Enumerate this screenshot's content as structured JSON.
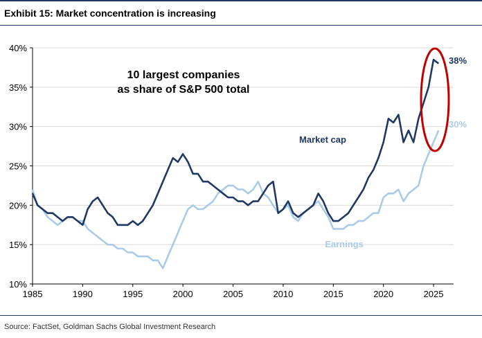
{
  "title": "Exhibit 15: Market concentration is increasing",
  "source": "Source: FactSet, Goldman Sachs Global Investment Research",
  "chart_data": {
    "type": "line",
    "subtitle_lines": [
      "10 largest companies",
      "as share of S&P 500 total"
    ],
    "xlim": [
      1985,
      2027
    ],
    "ylim": [
      10,
      40
    ],
    "x_ticks": [
      1985,
      1990,
      1995,
      2000,
      2005,
      2010,
      2015,
      2020,
      2025
    ],
    "y_ticks": [
      10,
      15,
      20,
      25,
      30,
      35,
      40
    ],
    "y_tick_labels": [
      "10%",
      "15%",
      "20%",
      "25%",
      "30%",
      "35%",
      "40%"
    ],
    "annotations": [
      {
        "text": "38%",
        "color": "#1f3864"
      },
      {
        "text": "30%",
        "color": "#a9cbe8"
      }
    ],
    "highlight": {
      "shape": "ellipse",
      "color": "#c00000",
      "around": "2024-2025 peak"
    },
    "series": [
      {
        "name": "Market cap",
        "color": "#1f3864",
        "x": [
          1985,
          1985.5,
          1986,
          1986.5,
          1987,
          1987.5,
          1988,
          1988.5,
          1989,
          1989.5,
          1990,
          1990.5,
          1991,
          1991.5,
          1992,
          1992.5,
          1993,
          1993.5,
          1994,
          1994.5,
          1995,
          1995.5,
          1996,
          1996.5,
          1997,
          1997.5,
          1998,
          1998.5,
          1999,
          1999.5,
          2000,
          2000.5,
          2001,
          2001.5,
          2002,
          2002.5,
          2003,
          2003.5,
          2004,
          2004.5,
          2005,
          2005.5,
          2006,
          2006.5,
          2007,
          2007.5,
          2008,
          2008.5,
          2009,
          2009.5,
          2010,
          2010.5,
          2011,
          2011.5,
          2012,
          2012.5,
          2013,
          2013.5,
          2014,
          2014.5,
          2015,
          2015.5,
          2016,
          2016.5,
          2017,
          2017.5,
          2018,
          2018.5,
          2019,
          2019.5,
          2020,
          2020.5,
          2021,
          2021.5,
          2022,
          2022.5,
          2023,
          2023.5,
          2024,
          2024.5,
          2025,
          2025.5
        ],
        "values": [
          21.5,
          20.0,
          19.5,
          19.0,
          19.0,
          18.5,
          18.0,
          18.5,
          18.5,
          18.0,
          17.5,
          19.5,
          20.5,
          21.0,
          20.0,
          19.0,
          18.5,
          17.5,
          17.5,
          17.5,
          18.0,
          17.5,
          18.0,
          19.0,
          20.0,
          21.5,
          23.0,
          24.5,
          26.0,
          25.5,
          26.5,
          25.5,
          24.0,
          24.0,
          23.0,
          23.0,
          22.5,
          22.0,
          21.5,
          21.0,
          21.0,
          20.5,
          20.5,
          20.0,
          20.5,
          20.5,
          21.5,
          22.5,
          23.0,
          19.0,
          19.5,
          20.5,
          19.0,
          18.5,
          19.0,
          19.5,
          20.0,
          21.5,
          20.5,
          19.0,
          18.0,
          18.0,
          18.5,
          19.0,
          20.0,
          21.0,
          22.0,
          23.5,
          24.5,
          26.0,
          28.0,
          31.0,
          30.5,
          31.5,
          28.0,
          29.5,
          28.0,
          31.0,
          33.0,
          35.0,
          38.5,
          38.0
        ]
      },
      {
        "name": "Earnings",
        "color": "#a9cbe8",
        "x": [
          1985,
          1985.5,
          1986,
          1986.5,
          1987,
          1987.5,
          1988,
          1988.5,
          1989,
          1989.5,
          1990,
          1990.5,
          1991,
          1991.5,
          1992,
          1992.5,
          1993,
          1993.5,
          1994,
          1994.5,
          1995,
          1995.5,
          1996,
          1996.5,
          1997,
          1997.5,
          1998,
          1998.5,
          1999,
          1999.5,
          2000,
          2000.5,
          2001,
          2001.5,
          2002,
          2002.5,
          2003,
          2003.5,
          2004,
          2004.5,
          2005,
          2005.5,
          2006,
          2006.5,
          2007,
          2007.5,
          2008,
          2008.5,
          2009,
          2009.5,
          2010,
          2010.5,
          2011,
          2011.5,
          2012,
          2012.5,
          2013,
          2013.5,
          2014,
          2014.5,
          2015,
          2015.5,
          2016,
          2016.5,
          2017,
          2017.5,
          2018,
          2018.5,
          2019,
          2019.5,
          2020,
          2020.5,
          2021,
          2021.5,
          2022,
          2022.5,
          2023,
          2023.5,
          2024,
          2024.5,
          2025,
          2025.5
        ],
        "values": [
          22.0,
          20.0,
          19.5,
          18.5,
          18.0,
          17.5,
          18.0,
          18.5,
          18.5,
          18.0,
          18.0,
          17.0,
          16.5,
          16.0,
          15.5,
          15.0,
          15.0,
          14.5,
          14.5,
          14.0,
          14.0,
          13.5,
          13.5,
          13.5,
          13.0,
          13.0,
          12.0,
          13.5,
          15.0,
          16.5,
          18.0,
          19.5,
          20.0,
          19.5,
          19.5,
          20.0,
          20.5,
          21.5,
          22.0,
          22.5,
          22.5,
          22.0,
          22.0,
          21.5,
          22.0,
          23.0,
          21.5,
          21.0,
          20.0,
          19.0,
          19.5,
          20.0,
          18.5,
          18.0,
          19.0,
          19.5,
          20.0,
          20.5,
          19.5,
          18.5,
          17.0,
          17.0,
          17.0,
          17.5,
          17.5,
          18.0,
          18.0,
          18.5,
          19.0,
          19.0,
          21.0,
          21.5,
          21.5,
          22.0,
          20.5,
          21.5,
          22.0,
          22.5,
          25.0,
          26.5,
          28.0,
          29.5
        ]
      }
    ]
  }
}
